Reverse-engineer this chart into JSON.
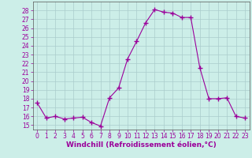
{
  "x": [
    0,
    1,
    2,
    3,
    4,
    5,
    6,
    7,
    8,
    9,
    10,
    11,
    12,
    13,
    14,
    15,
    16,
    17,
    18,
    19,
    20,
    21,
    22,
    23
  ],
  "y": [
    17.5,
    15.8,
    16.0,
    15.7,
    15.8,
    15.9,
    15.3,
    14.9,
    18.1,
    19.2,
    22.5,
    24.5,
    26.6,
    28.1,
    27.8,
    27.7,
    27.2,
    27.2,
    21.5,
    18.0,
    18.0,
    18.1,
    16.0,
    15.8
  ],
  "line_color": "#9b009b",
  "marker": "+",
  "marker_size": 4,
  "bg_color": "#cceee8",
  "grid_color": "#aacccc",
  "xlabel": "Windchill (Refroidissement éolien,°C)",
  "xlim": [
    -0.5,
    23.5
  ],
  "ylim": [
    14.5,
    29.0
  ],
  "yticks": [
    15,
    16,
    17,
    18,
    19,
    20,
    21,
    22,
    23,
    24,
    25,
    26,
    27,
    28
  ],
  "xticks": [
    0,
    1,
    2,
    3,
    4,
    5,
    6,
    7,
    8,
    9,
    10,
    11,
    12,
    13,
    14,
    15,
    16,
    17,
    18,
    19,
    20,
    21,
    22,
    23
  ],
  "axis_color": "#555555",
  "label_color": "#9b009b",
  "tick_color": "#9b009b",
  "xlabel_fontsize": 6.5,
  "tick_fontsize": 5.5,
  "linewidth": 0.8,
  "marker_color": "#9b009b"
}
